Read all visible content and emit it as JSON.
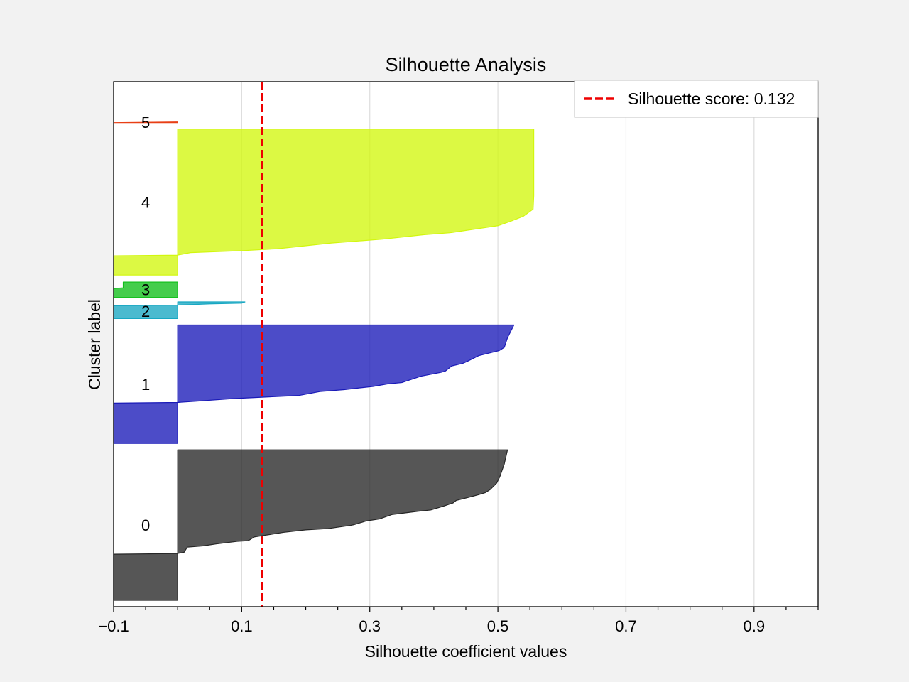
{
  "chart_data": {
    "type": "area",
    "title": "Silhouette Analysis",
    "xlabel": "Silhouette coefficient values",
    "ylabel": "Cluster label",
    "xlim": [
      -0.1,
      1.0
    ],
    "ylim": [
      0,
      820
    ],
    "x_ticks": [
      -0.1,
      0.1,
      0.3,
      0.5,
      0.7,
      0.9
    ],
    "x_tick_labels": [
      "−0.1",
      "0.1",
      "0.3",
      "0.5",
      "0.7",
      "0.9"
    ],
    "grid": true,
    "silhouette_score": 0.132,
    "legend": {
      "position": "top-right",
      "entries": [
        "Silhouette score: 0.132"
      ]
    },
    "reference_line": {
      "x": 0.132,
      "color": "#ee0000",
      "style": "dashed"
    },
    "clusters": [
      {
        "label": "0",
        "color": "#262626",
        "y_lower": 10,
        "y_upper": 245,
        "profile": [
          [
            0,
            -0.1
          ],
          [
            72,
            -0.1
          ],
          [
            73,
            -0.001
          ],
          [
            75,
            0.01
          ],
          [
            83,
            0.015
          ],
          [
            85,
            0.04
          ],
          [
            88,
            0.06
          ],
          [
            92,
            0.093
          ],
          [
            93,
            0.11
          ],
          [
            99,
            0.12
          ],
          [
            106,
            0.165
          ],
          [
            110,
            0.2
          ],
          [
            112,
            0.235
          ],
          [
            117,
            0.27
          ],
          [
            118,
            0.275
          ],
          [
            124,
            0.295
          ],
          [
            127,
            0.315
          ],
          [
            134,
            0.335
          ],
          [
            139,
            0.375
          ],
          [
            141,
            0.395
          ],
          [
            147,
            0.415
          ],
          [
            152,
            0.43
          ],
          [
            156,
            0.435
          ],
          [
            161,
            0.455
          ],
          [
            165,
            0.47
          ],
          [
            168,
            0.48
          ],
          [
            173,
            0.488
          ],
          [
            183,
            0.498
          ],
          [
            193,
            0.503
          ],
          [
            213,
            0.51
          ],
          [
            235,
            0.515
          ]
        ]
      },
      {
        "label": "1",
        "color": "#1a1ab8",
        "y_lower": 255,
        "y_upper": 440,
        "profile": [
          [
            0,
            -0.1
          ],
          [
            63,
            -0.1
          ],
          [
            64,
            -0.001
          ],
          [
            66,
            0.03
          ],
          [
            70,
            0.085
          ],
          [
            75,
            0.19
          ],
          [
            81,
            0.222
          ],
          [
            84,
            0.26
          ],
          [
            89,
            0.305
          ],
          [
            93,
            0.328
          ],
          [
            95,
            0.35
          ],
          [
            105,
            0.38
          ],
          [
            111,
            0.411
          ],
          [
            113,
            0.418
          ],
          [
            121,
            0.428
          ],
          [
            125,
            0.445
          ],
          [
            128,
            0.452
          ],
          [
            137,
            0.47
          ],
          [
            142,
            0.49
          ],
          [
            145,
            0.502
          ],
          [
            150,
            0.51
          ],
          [
            165,
            0.515
          ],
          [
            185,
            0.525
          ]
        ]
      },
      {
        "label": "2",
        "color": "#17a7c2",
        "y_lower": 450,
        "y_upper": 473,
        "profile": [
          [
            0,
            -0.1
          ],
          [
            20,
            -0.1
          ],
          [
            21,
            -0.001
          ],
          [
            23,
            0.05
          ],
          [
            24,
            0.1
          ],
          [
            26,
            0.105
          ]
        ]
      },
      {
        "label": "3",
        "color": "#0fbf1a",
        "y_lower": 483,
        "y_upper": 508,
        "profile": [
          [
            0,
            -0.1
          ],
          [
            14,
            -0.1
          ],
          [
            15,
            -0.085
          ],
          [
            24,
            -0.085
          ]
        ]
      },
      {
        "label": "4",
        "color": "#d2f70e",
        "y_lower": 518,
        "y_upper": 746,
        "profile": [
          [
            0,
            -0.1
          ],
          [
            30,
            -0.1
          ],
          [
            31,
            -0.001
          ],
          [
            35,
            0.02
          ],
          [
            38,
            0.1
          ],
          [
            41,
            0.155
          ],
          [
            50,
            0.24
          ],
          [
            56,
            0.32
          ],
          [
            63,
            0.385
          ],
          [
            66,
            0.425
          ],
          [
            77,
            0.5
          ],
          [
            84,
            0.52
          ],
          [
            92,
            0.54
          ],
          [
            103,
            0.555
          ],
          [
            124,
            0.556
          ],
          [
            170,
            0.556
          ],
          [
            228,
            0.556
          ]
        ]
      },
      {
        "label": "5",
        "color": "#e83f15",
        "y_lower": 756,
        "y_upper": 757,
        "profile": [
          [
            0,
            -0.1
          ],
          [
            1,
            -0.001
          ]
        ]
      }
    ]
  }
}
